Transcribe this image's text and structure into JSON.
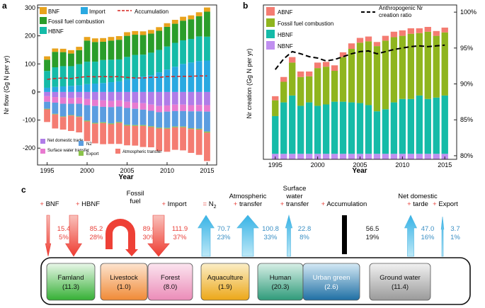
{
  "chart_data": [
    {
      "type": "bar",
      "panel": "a",
      "stacked": true,
      "xlabel": "Year",
      "ylabel": "Nr flow (Gg N per yr)",
      "ylim": [
        -260,
        310
      ],
      "x": [
        1995,
        1996,
        1997,
        1998,
        1999,
        2000,
        2001,
        2002,
        2003,
        2004,
        2005,
        2006,
        2007,
        2008,
        2009,
        2010,
        2011,
        2012,
        2013,
        2014,
        2015
      ],
      "xticks": [
        "1995",
        "2000",
        "2005",
        "2010",
        "2015"
      ],
      "yticks": [
        "-200",
        "-100",
        "0",
        "100",
        "200",
        "300"
      ],
      "legend_inputs": [
        "BNF",
        "Import",
        "Accumulation",
        "Fossil fuel combustion",
        "HBNF"
      ],
      "legend_outputs": [
        "Net domestic trade",
        "N2",
        "Surface water transfer",
        "Export",
        "Atmospheric transfer"
      ],
      "positive_series": [
        {
          "name": "Import",
          "color": "#29a9e1",
          "values": [
            15,
            18,
            20,
            22,
            24,
            28,
            30,
            32,
            35,
            38,
            45,
            50,
            55,
            60,
            70,
            80,
            90,
            100,
            105,
            110,
            112
          ]
        },
        {
          "name": "HBNF",
          "color": "#15bba8",
          "values": [
            60,
            70,
            72,
            70,
            75,
            80,
            78,
            82,
            80,
            78,
            80,
            82,
            78,
            80,
            80,
            82,
            85,
            84,
            84,
            88,
            85
          ]
        },
        {
          "name": "Fossil fuel combustion",
          "color": "#2a9d2a",
          "values": [
            40,
            55,
            50,
            45,
            50,
            75,
            70,
            65,
            68,
            70,
            75,
            72,
            70,
            68,
            68,
            70,
            68,
            70,
            70,
            72,
            89
          ]
        },
        {
          "name": "BNF",
          "color": "#e8a31d",
          "values": [
            12,
            12,
            12,
            12,
            12,
            13,
            13,
            13,
            13,
            13,
            13,
            13,
            13,
            13,
            13,
            13,
            14,
            14,
            14,
            14,
            15
          ]
        }
      ],
      "negative_series": [
        {
          "name": "Net domestic trade",
          "color": "#b07ce8",
          "values": [
            -15,
            -18,
            -20,
            -22,
            -20,
            -25,
            -28,
            -30,
            -32,
            -30,
            -35,
            -38,
            -40,
            -45,
            -50,
            -48,
            -45,
            -45,
            -47,
            -46,
            -47
          ]
        },
        {
          "name": "Surface water transfer",
          "color": "#e87ad0",
          "values": [
            -20,
            -20,
            -22,
            -20,
            -22,
            -22,
            -22,
            -23,
            -22,
            -22,
            -22,
            -22,
            -23,
            -22,
            -22,
            -22,
            -23,
            -23,
            -22,
            -23,
            -23
          ]
        },
        {
          "name": "N2",
          "color": "#5b9de0",
          "values": [
            -25,
            -40,
            -45,
            -40,
            -45,
            -55,
            -60,
            -55,
            -58,
            -55,
            -60,
            -58,
            -55,
            -55,
            -55,
            -58,
            -55,
            -55,
            -60,
            -62,
            -71
          ]
        },
        {
          "name": "Export",
          "color": "#8bc34a",
          "values": [
            -2,
            -2,
            -2,
            -2,
            -2,
            -3,
            -3,
            -3,
            -3,
            -3,
            -3,
            -3,
            -3,
            -3,
            -3,
            -3,
            -3,
            -3,
            -3,
            -3,
            -4
          ]
        },
        {
          "name": "Atmospheric transfer",
          "color": "#f47c72",
          "values": [
            -45,
            -50,
            -45,
            -55,
            -55,
            -70,
            -70,
            -75,
            -70,
            -75,
            -70,
            -70,
            -75,
            -72,
            -80,
            -82,
            -80,
            -82,
            -85,
            -90,
            -101
          ]
        }
      ],
      "accumulation": {
        "name": "Accumulation",
        "color": "#d6241f",
        "values": [
          45,
          48,
          50,
          48,
          52,
          55,
          54,
          55,
          54,
          55,
          52,
          50,
          50,
          52,
          52,
          55,
          55,
          56,
          56,
          57,
          57
        ]
      }
    },
    {
      "type": "bar",
      "panel": "b",
      "stacked": true,
      "xlabel": "Year",
      "ylabel": "Nr creation (Gg N per yr)",
      "ylim": [
        0,
        225
      ],
      "y2lim": [
        79.5,
        101
      ],
      "x": [
        1995,
        1996,
        1997,
        1998,
        1999,
        2000,
        2001,
        2002,
        2003,
        2004,
        2005,
        2006,
        2007,
        2008,
        2009,
        2010,
        2011,
        2012,
        2013,
        2014,
        2015
      ],
      "xticks": [
        "1995",
        "2000",
        "2005",
        "2010",
        "2015"
      ],
      "yticks2": [
        "80%",
        "85%",
        "90%",
        "95%",
        "100%"
      ],
      "legend": [
        "ABNF",
        "Fossil fuel combustion",
        "HBNF",
        "NBNF",
        "Anthropogenic Nr creation ratio"
      ],
      "series": [
        {
          "name": "NBNF",
          "color": "#c08ff0",
          "values": [
            8,
            8,
            8,
            8,
            8,
            8,
            8,
            8,
            8,
            8,
            8,
            8,
            8,
            8,
            8,
            8,
            8,
            8,
            8,
            8,
            8
          ]
        },
        {
          "name": "HBNF",
          "color": "#15bba8",
          "values": [
            55,
            75,
            85,
            70,
            75,
            70,
            72,
            76,
            76,
            75,
            74,
            71,
            62,
            65,
            75,
            80,
            80,
            85,
            80,
            82,
            85
          ]
        },
        {
          "name": "Fossil fuel combustion",
          "color": "#8fb51e",
          "values": [
            23,
            30,
            48,
            42,
            38,
            55,
            55,
            45,
            65,
            78,
            88,
            93,
            95,
            100,
            95,
            92,
            95,
            91,
            98,
            90,
            92
          ]
        },
        {
          "name": "ABNF",
          "color": "#f47c72",
          "values": [
            6,
            7,
            8,
            8,
            7,
            8,
            7,
            8,
            7,
            8,
            7,
            7,
            6,
            7,
            8,
            8,
            8,
            7,
            7,
            7,
            7
          ]
        }
      ],
      "ratio_line": {
        "name": "Anthropogenic Nr creation ratio",
        "values": [
          92,
          93.5,
          94.5,
          94.2,
          93.8,
          93.6,
          93.2,
          93.4,
          93.8,
          94.2,
          94.5,
          94.6,
          94.2,
          94.5,
          94.8,
          95,
          95.2,
          95.3,
          95.2,
          95.3,
          95.4
        ]
      }
    }
  ],
  "panel_labels": [
    "a",
    "b",
    "c"
  ],
  "panel_c": {
    "flows": [
      {
        "label": "BNF",
        "sign": "+",
        "value": "15.4",
        "pct": "5%",
        "dir": "in"
      },
      {
        "label": "HBNF",
        "sign": "+",
        "value": "85.2",
        "pct": "28%",
        "dir": "in"
      },
      {
        "label": "Fossil fuel",
        "sign": "",
        "value": "89.0",
        "pct": "30%",
        "dir": "uturn"
      },
      {
        "label": "Import",
        "sign": "+",
        "value": "111.9",
        "pct": "37%",
        "dir": "in"
      },
      {
        "label": "= N",
        "sub": "2",
        "sign": "",
        "value": "70.7",
        "pct": "23%",
        "dir": "out"
      },
      {
        "label": "Atmospheric transfer",
        "sign": "+",
        "value": "100.8",
        "pct": "33%",
        "dir": "out"
      },
      {
        "label": "Surface water transfer",
        "sign": "+",
        "value": "22.8",
        "pct": "8%",
        "dir": "out"
      },
      {
        "label": "Accumulation",
        "sign": "+",
        "value": "56.5",
        "pct": "19%",
        "dir": "bar"
      },
      {
        "label": "Net domestic tarde",
        "sign": "+",
        "value": "47.0",
        "pct": "16%",
        "dir": "out"
      },
      {
        "label": "Export",
        "sign": "+",
        "value": "3.7",
        "pct": "1%",
        "dir": "out"
      }
    ],
    "boxes": [
      {
        "name": "Famland",
        "value": "(11.3)",
        "color": "#35b035"
      },
      {
        "name": "Livestock",
        "value": "(1.0)",
        "color": "#f59a4a"
      },
      {
        "name": "Forest",
        "value": "(8.0)",
        "color": "#f09cc3"
      },
      {
        "name": "Aquaculture",
        "value": "(1.9)",
        "color": "#f0b020"
      },
      {
        "name": "Human",
        "value": "(20.3)",
        "color": "#3aa88a"
      },
      {
        "name": "Urban green",
        "value": "(2.6)",
        "color": "#2a7fb0"
      },
      {
        "name": "Ground water",
        "value": "(11.4)",
        "color": "#a8a8a8"
      }
    ]
  }
}
